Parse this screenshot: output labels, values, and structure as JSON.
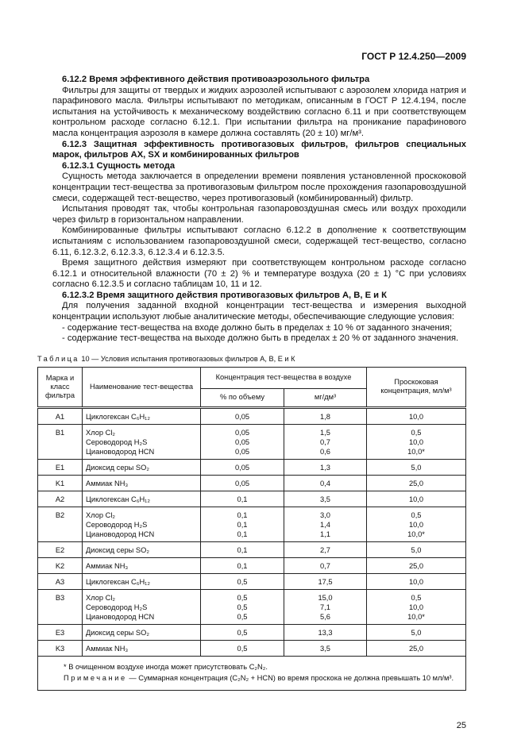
{
  "header": {
    "doc_id": "ГОСТ Р 12.4.250—2009"
  },
  "paragraphs": [
    {
      "type": "heading",
      "text": "6.12.2  Время эффективного действия противоаэрозольного фильтра"
    },
    {
      "type": "text",
      "text": "Фильтры для защиты от твердых и жидких аэрозолей испытывают с аэрозолем хлорида натрия и парафинового масла. Фильтры испытывают по методикам, описанным в ГОСТ Р 12.4.194, после испытания на устойчивость к механическому воздействию согласно 6.11 и при соответствующем контрольном расходе согласно 6.12.1. При испытании фильтра на проникание парафинового масла концентрация аэрозоля в камере должна составлять (20 ± 10) мг/м³."
    },
    {
      "type": "heading",
      "text": "6.12.3 Защитная эффективность противогазовых фильтров, фильтров специальных марок, фильтров AX, SX и комбинированных фильтров"
    },
    {
      "type": "heading",
      "text": "6.12.3.1  Сущность метода"
    },
    {
      "type": "text",
      "text": "Сущность метода заключается в определении времени появления установленной проскоковой концентрации тест-вещества за противогазовым фильтром после прохождения газопаровоздушной смеси, содержащей тест-вещество, через противогазовый (комбинированный) фильтр."
    },
    {
      "type": "text",
      "text": "Испытания проводят так, чтобы контрольная газопаровоздушная смесь или воздух проходили через фильтр в горизонтальном направлении."
    },
    {
      "type": "text",
      "text": "Комбинированные фильтры испытывают согласно 6.12.2 в дополнение к соответствующим испытаниям с использованием газопаровоздушной смеси, содержащей тест-вещество, согласно 6.11, 6.12.3.2, 6.12.3.3, 6.12.3.4 и 6.12.3.5."
    },
    {
      "type": "text",
      "text": "Время защитного действия измеряют при соответствующем контрольном расходе согласно 6.12.1 и относительной влажности (70 ± 2) % и температуре воздуха (20 ± 1) °С при условиях согласно 6.12.3.5 и согласно таблицам 10, 11 и 12."
    },
    {
      "type": "heading",
      "text": "6.12.3.2  Время защитного действия противогазовых фильтров А, В, Е и К"
    },
    {
      "type": "text",
      "text": "Для получения заданной входной концентрации тест-вещества и измерения выходной концентрации используют любые аналитические методы, обеспечивающие следующие условия:"
    },
    {
      "type": "list",
      "text": "- содержание тест-вещества на входе должно быть в пределах ± 10 % от заданного значения;"
    },
    {
      "type": "list",
      "text": "- содержание тест-вещества на выходе должно быть в пределах ± 20 % от заданного значения."
    }
  ],
  "table": {
    "caption_prefix": "Таблица",
    "caption": " 10 — Условия испытания противогазовых фильтров А, В, Е и К",
    "headers": {
      "mark": "Марка и класс фильтра",
      "substance": "Наименование тест-вещества",
      "concentration": "Концентрация тест-вещества в воздухе",
      "percent": "% по объему",
      "mg": "мг/дм³",
      "breakthrough": "Проскоковая концентрация, мл/м³"
    },
    "rows": [
      {
        "mark": "A1",
        "items": [
          {
            "name": "Циклогексан C₆H₁₂",
            "percent": "0,05",
            "mg": "1,8",
            "bt": "10,0"
          }
        ]
      },
      {
        "mark": "B1",
        "items": [
          {
            "name": "Хлор Cl₂",
            "percent": "0,05",
            "mg": "1,5",
            "bt": "0,5"
          },
          {
            "name": "Сероводород H₂S",
            "percent": "0,05",
            "mg": "0,7",
            "bt": "10,0"
          },
          {
            "name": "Циановодород HCN",
            "percent": "0,05",
            "mg": "0,6",
            "bt": "10,0*"
          }
        ]
      },
      {
        "mark": "E1",
        "items": [
          {
            "name": "Диоксид серы SO₂",
            "percent": "0,05",
            "mg": "1,3",
            "bt": "5,0"
          }
        ]
      },
      {
        "mark": "K1",
        "items": [
          {
            "name": "Аммиак NH₃",
            "percent": "0,05",
            "mg": "0,4",
            "bt": "25,0"
          }
        ]
      },
      {
        "mark": "A2",
        "items": [
          {
            "name": "Циклогексан C₆H₁₂",
            "percent": "0,1",
            "mg": "3,5",
            "bt": "10,0"
          }
        ]
      },
      {
        "mark": "B2",
        "items": [
          {
            "name": "Хлор Cl₂",
            "percent": "0,1",
            "mg": "3,0",
            "bt": "0,5"
          },
          {
            "name": "Сероводород H₂S",
            "percent": "0,1",
            "mg": "1,4",
            "bt": "10,0"
          },
          {
            "name": "Циановодород HCN",
            "percent": "0,1",
            "mg": "1,1",
            "bt": "10,0*"
          }
        ]
      },
      {
        "mark": "E2",
        "items": [
          {
            "name": "Диоксид серы SO₂",
            "percent": "0,1",
            "mg": "2,7",
            "bt": "5,0"
          }
        ]
      },
      {
        "mark": "K2",
        "items": [
          {
            "name": "Аммиак NH₃",
            "percent": "0,1",
            "mg": "0,7",
            "bt": "25,0"
          }
        ]
      },
      {
        "mark": "A3",
        "items": [
          {
            "name": "Циклогексан C₆H₁₂",
            "percent": "0,5",
            "mg": "17,5",
            "bt": "10,0"
          }
        ]
      },
      {
        "mark": "B3",
        "items": [
          {
            "name": "Хлор Cl₂",
            "percent": "0,5",
            "mg": "15,0",
            "bt": "0,5"
          },
          {
            "name": "Сероводород H₂S",
            "percent": "0,5",
            "mg": "7,1",
            "bt": "10,0"
          },
          {
            "name": "Циановодород HCN",
            "percent": "0,5",
            "mg": "5,6",
            "bt": "10,0*"
          }
        ]
      },
      {
        "mark": "E3",
        "items": [
          {
            "name": "Диоксид серы SO₂",
            "percent": "0,5",
            "mg": "13,3",
            "bt": "5,0"
          }
        ]
      },
      {
        "mark": "K3",
        "items": [
          {
            "name": "Аммиак NH₃",
            "percent": "0,5",
            "mg": "3,5",
            "bt": "25,0"
          }
        ]
      }
    ],
    "footnote": "* В очищенном воздухе иногда может присутствовать C₂N₂.",
    "note_prefix": "Примечание",
    "note": " — Суммарная концентрация (C₂N₂ + HCN) во время проскока не должна превышать 10 мл/м³."
  },
  "page_number": "25"
}
